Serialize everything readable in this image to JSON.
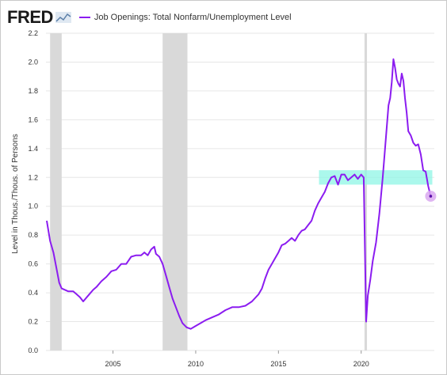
{
  "logo": {
    "text": "FRED",
    "mark_icon": "fred-line-chart-icon"
  },
  "legend": {
    "label": "Job Openings: Total Nonfarm/Unemployment Level",
    "color": "#8b1cf0"
  },
  "colors": {
    "line": "#8b1cf0",
    "recession": "#d9d9d9",
    "highlight_band": "#8ff5e6",
    "grid": "#e6e6e6",
    "end_marker": "#d9a8f0"
  },
  "chart_data": {
    "type": "line",
    "title": "",
    "xlabel": "",
    "ylabel": "Level in Thous./Thous. of Persons",
    "xlim": [
      2000.95,
      2024.42
    ],
    "ylim": [
      0.0,
      2.2
    ],
    "x_ticks": [
      2005,
      2010,
      2015,
      2020
    ],
    "y_ticks": [
      0.0,
      0.2,
      0.4,
      0.6,
      0.8,
      1.0,
      1.2,
      1.4,
      1.6,
      1.8,
      2.0,
      2.2
    ],
    "y_tick_labels": [
      "0.0",
      "0.2",
      "0.4",
      "0.6",
      "0.8",
      "1.0",
      "1.2",
      "1.4",
      "1.6",
      "1.8",
      "2.0",
      "2.2"
    ],
    "grid": "horizontal",
    "recessions": [
      [
        2001.2,
        2001.9
      ],
      [
        2008.0,
        2009.5
      ],
      [
        2020.2,
        2020.35
      ]
    ],
    "highlight_band": {
      "x": [
        2017.45,
        2024.3
      ],
      "y": [
        1.15,
        1.25
      ]
    },
    "series": [
      {
        "name": "Job Openings: Total Nonfarm/Unemployment Level",
        "x": [
          2001.0,
          2001.2,
          2001.4,
          2001.6,
          2001.75,
          2001.9,
          2002.1,
          2002.3,
          2002.6,
          2002.8,
          2003.0,
          2003.2,
          2003.5,
          2003.8,
          2004.0,
          2004.3,
          2004.6,
          2004.9,
          2005.2,
          2005.5,
          2005.8,
          2006.1,
          2006.4,
          2006.7,
          2006.9,
          2007.1,
          2007.3,
          2007.5,
          2007.6,
          2007.8,
          2008.0,
          2008.2,
          2008.4,
          2008.6,
          2008.8,
          2009.0,
          2009.2,
          2009.45,
          2009.7,
          2010.0,
          2010.3,
          2010.6,
          2011.0,
          2011.4,
          2011.8,
          2012.2,
          2012.6,
          2013.0,
          2013.4,
          2013.8,
          2014.0,
          2014.2,
          2014.4,
          2014.6,
          2014.8,
          2015.0,
          2015.2,
          2015.4,
          2015.6,
          2015.8,
          2016.0,
          2016.2,
          2016.4,
          2016.6,
          2016.8,
          2017.0,
          2017.2,
          2017.4,
          2017.6,
          2017.8,
          2018.0,
          2018.2,
          2018.4,
          2018.6,
          2018.8,
          2019.0,
          2019.2,
          2019.4,
          2019.6,
          2019.8,
          2020.0,
          2020.15,
          2020.3,
          2020.4,
          2020.55,
          2020.7,
          2020.9,
          2021.1,
          2021.3,
          2021.5,
          2021.65,
          2021.75,
          2021.85,
          2021.95,
          2022.05,
          2022.15,
          2022.25,
          2022.35,
          2022.45,
          2022.55,
          2022.65,
          2022.75,
          2022.85,
          2023.0,
          2023.15,
          2023.3,
          2023.45,
          2023.6,
          2023.75,
          2023.9,
          2024.05,
          2024.2
        ],
        "values": [
          0.9,
          0.76,
          0.68,
          0.56,
          0.47,
          0.43,
          0.42,
          0.41,
          0.41,
          0.39,
          0.37,
          0.34,
          0.38,
          0.42,
          0.44,
          0.48,
          0.51,
          0.55,
          0.56,
          0.6,
          0.6,
          0.65,
          0.66,
          0.66,
          0.68,
          0.66,
          0.7,
          0.72,
          0.67,
          0.65,
          0.6,
          0.52,
          0.44,
          0.36,
          0.3,
          0.24,
          0.19,
          0.16,
          0.15,
          0.17,
          0.19,
          0.21,
          0.23,
          0.25,
          0.28,
          0.3,
          0.3,
          0.31,
          0.34,
          0.39,
          0.43,
          0.5,
          0.56,
          0.6,
          0.64,
          0.68,
          0.73,
          0.74,
          0.76,
          0.78,
          0.76,
          0.8,
          0.83,
          0.84,
          0.87,
          0.9,
          0.97,
          1.02,
          1.06,
          1.1,
          1.16,
          1.2,
          1.21,
          1.15,
          1.22,
          1.22,
          1.18,
          1.2,
          1.22,
          1.19,
          1.22,
          1.2,
          0.2,
          0.38,
          0.49,
          0.62,
          0.75,
          0.95,
          1.2,
          1.48,
          1.7,
          1.75,
          1.86,
          2.02,
          1.96,
          1.88,
          1.85,
          1.83,
          1.92,
          1.87,
          1.75,
          1.65,
          1.52,
          1.49,
          1.44,
          1.42,
          1.43,
          1.36,
          1.25,
          1.24,
          1.14,
          1.07
        ]
      }
    ],
    "end_value": {
      "x": 2024.2,
      "y": 1.07
    }
  }
}
